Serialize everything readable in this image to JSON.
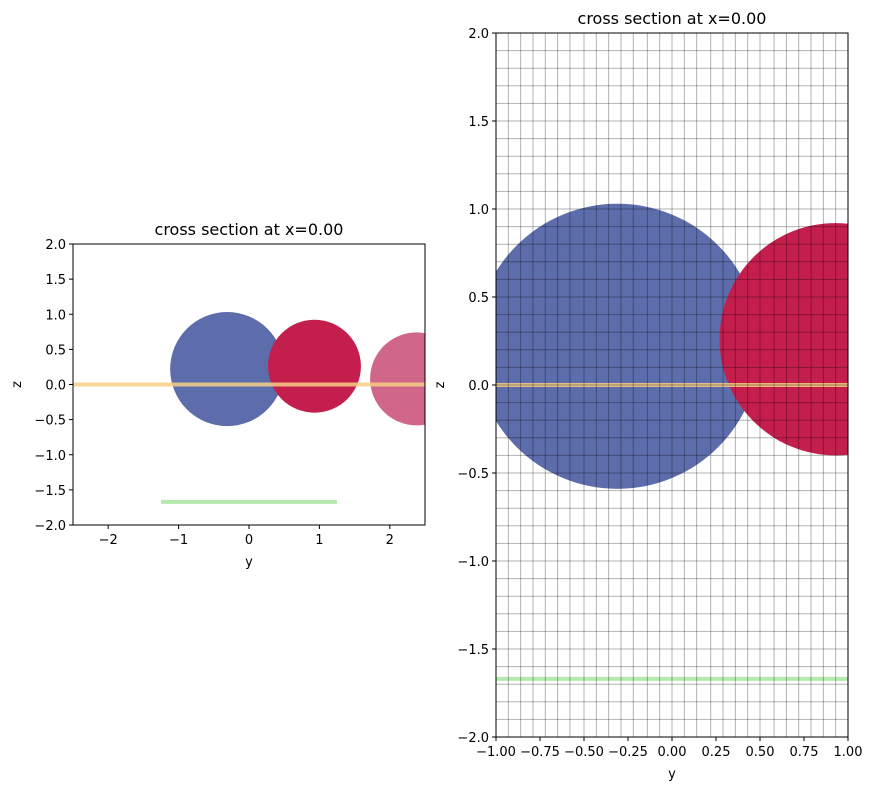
{
  "chart_data": [
    {
      "type": "scatter",
      "title": "cross section at x=0.00",
      "xlabel": "y",
      "ylabel": "z",
      "xlim": [
        -2.5,
        2.5
      ],
      "ylim": [
        -2,
        2
      ],
      "xticks": [
        -2,
        -1,
        0,
        1,
        2
      ],
      "xtick_labels": [
        "−2",
        "−1",
        "0",
        "1",
        "2"
      ],
      "yticks": [
        -2,
        -1.5,
        -1,
        -0.5,
        0,
        0.5,
        1,
        1.5,
        2
      ],
      "ytick_labels": [
        "−2.0",
        "−1.5",
        "−1.0",
        "−0.5",
        "0.0",
        "0.5",
        "1.0",
        "1.5",
        "2.0"
      ],
      "grid": false,
      "circles": [
        {
          "cx": -0.31,
          "cy": 0.22,
          "r": 0.81,
          "color": "#5d6cab"
        },
        {
          "cx": 0.93,
          "cy": 0.26,
          "r": 0.66,
          "color": "#c41e4c"
        },
        {
          "cx": 2.38,
          "cy": 0.08,
          "r": 0.66,
          "color": "#d0668a"
        }
      ],
      "lines": [
        {
          "x": [
            -2.5,
            2.5
          ],
          "y": [
            0.0,
            0.0
          ],
          "color": "#f7cf84"
        },
        {
          "x": [
            -1.25,
            1.25
          ],
          "y": [
            -1.67,
            -1.67
          ],
          "color": "#a8e6a0"
        }
      ]
    },
    {
      "type": "scatter",
      "title": "cross section at x=0.00",
      "xlabel": "y",
      "ylabel": "z",
      "xlim": [
        -1,
        1
      ],
      "ylim": [
        -2,
        2
      ],
      "xticks": [
        -1,
        -0.75,
        -0.5,
        -0.25,
        0,
        0.25,
        0.5,
        0.75,
        1
      ],
      "xtick_labels": [
        "−1.00",
        "−0.75",
        "−0.50",
        "−0.25",
        "0.00",
        "0.25",
        "0.50",
        "0.75",
        "1.00"
      ],
      "yticks": [
        -2,
        -1.5,
        -1,
        -0.5,
        0,
        0.5,
        1,
        1.5,
        2
      ],
      "ytick_labels": [
        "−2.0",
        "−1.5",
        "−1.0",
        "−0.5",
        "0.0",
        "0.5",
        "1.0",
        "1.5",
        "2.0"
      ],
      "grid": true,
      "grid_x": [
        -0.93,
        -0.86,
        -0.79,
        -0.72,
        -0.65,
        -0.58,
        -0.5,
        -0.43,
        -0.36,
        -0.29,
        -0.22,
        -0.14,
        -0.07,
        0.0,
        0.07,
        0.14,
        0.22,
        0.29,
        0.36,
        0.43,
        0.5,
        0.58,
        0.65,
        0.72,
        0.79,
        0.86,
        0.93
      ],
      "grid_y": [
        -1.9,
        -1.8,
        -1.7,
        -1.6,
        -1.5,
        -1.4,
        -1.3,
        -1.2,
        -1.1,
        -1.0,
        -0.9,
        -0.8,
        -0.7,
        -0.6,
        -0.5,
        -0.4,
        -0.3,
        -0.2,
        -0.1,
        0.0,
        0.1,
        0.2,
        0.3,
        0.4,
        0.5,
        0.6,
        0.7,
        0.8,
        0.9,
        1.0,
        1.1,
        1.2,
        1.3,
        1.4,
        1.5,
        1.6,
        1.7,
        1.8,
        1.9
      ],
      "grid_color": "#000000",
      "circles": [
        {
          "cx": -0.31,
          "cy": 0.22,
          "r": 0.81,
          "color": "#5d6cab"
        },
        {
          "cx": 0.93,
          "cy": 0.26,
          "r": 0.66,
          "color": "#c41e4c"
        },
        {
          "cx": 2.38,
          "cy": 0.08,
          "r": 0.66,
          "color": "#d0668a"
        }
      ],
      "lines": [
        {
          "x": [
            -1,
            1
          ],
          "y": [
            0.0,
            0.0
          ],
          "color": "#f7cf84"
        },
        {
          "x": [
            -1,
            1
          ],
          "y": [
            -1.67,
            -1.67
          ],
          "color": "#a8e6a0"
        }
      ]
    }
  ]
}
